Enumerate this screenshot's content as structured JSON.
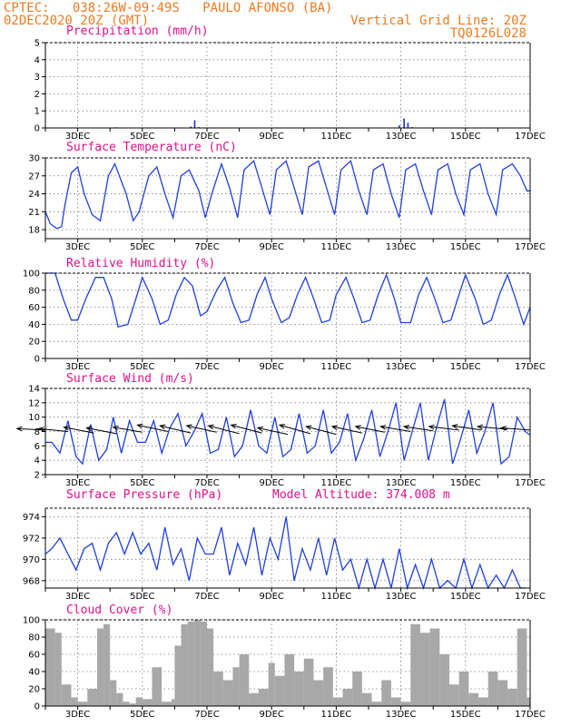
{
  "header": {
    "line1": "CPTEC:   038:26W-09:49S   PAULO AFONSO (BA)",
    "line2": "02DEC2020 20Z (GMT)",
    "vgrid": "Vertical Grid Line: 20Z",
    "code": "TQ0126L028"
  },
  "x_axis": {
    "start_day": 2.0,
    "end_day": 17.0,
    "tick_days": [
      3,
      5,
      7,
      9,
      11,
      13,
      15,
      17
    ],
    "tick_labels": [
      "3DEC",
      "5DEC",
      "7DEC",
      "9DEC",
      "11DEC",
      "13DEC",
      "15DEC",
      "17DEC"
    ]
  },
  "colors": {
    "line": "#1f3fe0",
    "bars_precip": "#1a2bd6",
    "cloud": "#a8a8a8",
    "title": "#e0128a",
    "header": "#f07a1f",
    "arrow": "#000000"
  },
  "chart_data": [
    {
      "type": "bar",
      "title": "Precipitation (mm/h)",
      "ylim": [
        0,
        5
      ],
      "yticks": [
        0,
        1,
        2,
        3,
        4,
        5
      ],
      "x": [
        2.6,
        4.2,
        6.5,
        6.62,
        6.75,
        9.1,
        11.2,
        12.95,
        13.1,
        13.22,
        13.35,
        15.3,
        16.6
      ],
      "values": [
        0.03,
        0.04,
        0.08,
        0.45,
        0.05,
        0.03,
        0.03,
        0.15,
        0.55,
        0.3,
        0.05,
        0.02,
        0.03
      ]
    },
    {
      "type": "line",
      "title": "Surface Temperature (nC)",
      "ylim": [
        16.5,
        30
      ],
      "yticks": [
        18,
        21,
        24,
        27,
        30
      ],
      "x": [
        2.0,
        2.15,
        2.35,
        2.5,
        2.6,
        2.8,
        3.0,
        3.2,
        3.45,
        3.7,
        3.95,
        4.15,
        4.5,
        4.72,
        4.9,
        5.2,
        5.45,
        5.7,
        5.95,
        6.2,
        6.45,
        6.75,
        6.95,
        7.15,
        7.45,
        7.7,
        7.95,
        8.15,
        8.45,
        8.7,
        8.95,
        9.15,
        9.45,
        9.7,
        9.95,
        10.15,
        10.45,
        10.7,
        10.95,
        11.15,
        11.45,
        11.7,
        11.95,
        12.15,
        12.45,
        12.7,
        12.95,
        13.15,
        13.45,
        13.7,
        13.95,
        14.15,
        14.45,
        14.7,
        14.95,
        15.15,
        15.45,
        15.7,
        15.95,
        16.15,
        16.45,
        16.7,
        16.9,
        17.0
      ],
      "values": [
        21.0,
        19.0,
        18.2,
        18.5,
        22,
        27.5,
        28.5,
        24,
        20.5,
        19.5,
        27,
        29,
        24,
        19.5,
        21,
        27,
        28.5,
        24,
        20,
        27,
        28,
        24.5,
        20,
        24,
        29,
        25,
        20,
        28,
        29.5,
        25,
        20.5,
        28,
        29.5,
        25,
        20.5,
        28.5,
        29.5,
        25,
        20.5,
        28,
        29.5,
        24.5,
        20.5,
        28,
        29,
        24,
        20,
        28,
        29,
        24.5,
        20.5,
        28,
        29,
        24,
        20.5,
        28,
        29,
        24,
        20.5,
        28,
        29,
        27,
        24.5,
        24.5
      ]
    },
    {
      "type": "line",
      "title": "Relative Humidity (%)",
      "ylim": [
        0,
        100
      ],
      "yticks": [
        0,
        20,
        40,
        60,
        80,
        100
      ],
      "x": [
        2.0,
        2.3,
        2.55,
        2.8,
        3.0,
        3.25,
        3.55,
        3.8,
        4.05,
        4.25,
        4.55,
        4.8,
        5.0,
        5.3,
        5.55,
        5.8,
        6.05,
        6.3,
        6.55,
        6.8,
        7.0,
        7.3,
        7.55,
        7.8,
        8.05,
        8.3,
        8.55,
        8.8,
        9.0,
        9.3,
        9.55,
        9.8,
        10.05,
        10.3,
        10.55,
        10.8,
        11.0,
        11.3,
        11.55,
        11.8,
        12.05,
        12.3,
        12.55,
        12.8,
        13.0,
        13.3,
        13.55,
        13.8,
        14.05,
        14.3,
        14.55,
        14.8,
        15.0,
        15.3,
        15.55,
        15.8,
        16.05,
        16.3,
        16.55,
        16.8,
        17.0
      ],
      "values": [
        100,
        100,
        70,
        45,
        45,
        70,
        95,
        95,
        70,
        37,
        40,
        70,
        95,
        70,
        40,
        45,
        75,
        95,
        85,
        50,
        55,
        80,
        95,
        65,
        42,
        45,
        75,
        95,
        70,
        42,
        48,
        75,
        95,
        70,
        42,
        45,
        75,
        95,
        70,
        42,
        45,
        75,
        98,
        70,
        42,
        42,
        75,
        95,
        70,
        42,
        45,
        75,
        98,
        70,
        40,
        45,
        75,
        98,
        70,
        40,
        60
      ]
    },
    {
      "type": "line",
      "title": "Surface Wind (m/s)",
      "ylim": [
        2,
        14
      ],
      "yticks": [
        2,
        4,
        6,
        8,
        10,
        12,
        14
      ],
      "x": [
        2.0,
        2.2,
        2.45,
        2.7,
        2.95,
        3.15,
        3.4,
        3.65,
        3.9,
        4.1,
        4.35,
        4.6,
        4.85,
        5.1,
        5.35,
        5.6,
        5.85,
        6.1,
        6.35,
        6.6,
        6.85,
        7.1,
        7.35,
        7.6,
        7.85,
        8.1,
        8.35,
        8.6,
        8.85,
        9.1,
        9.35,
        9.6,
        9.85,
        10.1,
        10.35,
        10.6,
        10.85,
        11.1,
        11.35,
        11.6,
        11.85,
        12.1,
        12.35,
        12.6,
        12.85,
        13.1,
        13.35,
        13.6,
        13.85,
        14.1,
        14.35,
        14.6,
        14.85,
        15.1,
        15.35,
        15.6,
        15.85,
        16.1,
        16.35,
        16.6,
        16.85,
        17.0
      ],
      "values": [
        6.5,
        6.5,
        5.0,
        9.5,
        4.5,
        3.5,
        9.0,
        4.0,
        5.5,
        10.0,
        5.0,
        9.5,
        6.5,
        6.5,
        9.5,
        5.0,
        8.5,
        10.5,
        6.0,
        8.0,
        10.5,
        5.0,
        5.5,
        10.0,
        4.5,
        6.0,
        11.0,
        6.0,
        5.0,
        10.0,
        4.5,
        5.5,
        10.5,
        5.0,
        6.0,
        11.0,
        5.0,
        6.5,
        10.5,
        4.0,
        7.0,
        11.0,
        4.5,
        8.0,
        12.0,
        4.0,
        8.0,
        12.0,
        4.0,
        8.5,
        12.5,
        3.5,
        7.0,
        11.0,
        5.0,
        8.0,
        12.0,
        3.5,
        4.5,
        10.0,
        8.0,
        7.5
      ],
      "arrows_day": [
        2.0,
        2.7,
        3.5,
        4.2,
        5.0,
        5.8,
        6.5,
        7.3,
        8.0,
        8.7,
        9.5,
        10.2,
        11.0,
        11.8,
        12.5,
        13.3,
        14.0,
        14.8,
        15.5,
        16.3,
        17.0
      ],
      "arrows_value": [
        8.2,
        8.0,
        7.8,
        7.7,
        7.9,
        8.0,
        7.8,
        7.9,
        7.7,
        7.8,
        7.6,
        7.7,
        7.6,
        7.8,
        7.9,
        8.0,
        8.1,
        8.2,
        8.2,
        8.3,
        8.2
      ],
      "arrows_dx": [
        -0.35,
        -0.36,
        -0.37,
        -0.37,
        -0.36,
        -0.38,
        -0.38,
        -0.37,
        -0.38,
        -0.38,
        -0.37,
        -0.38,
        -0.37,
        -0.37,
        -0.36,
        -0.37,
        -0.36,
        -0.37,
        -0.36,
        -0.37,
        -0.36
      ],
      "arrows_dy": [
        0.2,
        0.4,
        0.8,
        0.8,
        0.7,
        0.9,
        1.0,
        0.9,
        1.1,
        1.1,
        0.9,
        1.2,
        1.1,
        0.9,
        0.8,
        0.7,
        0.6,
        0.5,
        0.6,
        0.4,
        0.3
      ]
    },
    {
      "type": "line",
      "title": "Surface Pressure (hPa)",
      "annotation": "Model Altitude: 374.008 m",
      "ylim": [
        967.3,
        974.8
      ],
      "yticks": [
        968,
        970,
        972,
        974
      ],
      "x": [
        2.0,
        2.2,
        2.45,
        2.7,
        2.95,
        3.2,
        3.45,
        3.7,
        3.95,
        4.2,
        4.45,
        4.7,
        4.95,
        5.2,
        5.45,
        5.7,
        5.95,
        6.2,
        6.45,
        6.7,
        6.95,
        7.2,
        7.45,
        7.7,
        7.95,
        8.2,
        8.45,
        8.7,
        8.95,
        9.2,
        9.45,
        9.7,
        9.95,
        10.2,
        10.45,
        10.7,
        10.95,
        11.2,
        11.45,
        11.7,
        11.95,
        12.2,
        12.45,
        12.7,
        12.95,
        13.2,
        13.45,
        13.7,
        13.95,
        14.2,
        14.45,
        14.7,
        14.95,
        15.2,
        15.45,
        15.7,
        15.95,
        16.2,
        16.45,
        16.7,
        16.85
      ],
      "values": [
        970.5,
        971.0,
        972.0,
        970.5,
        969.0,
        971.0,
        971.5,
        969.0,
        971.5,
        972.5,
        970.5,
        972.5,
        970.5,
        971.5,
        969.0,
        973.0,
        969.5,
        971.0,
        968.0,
        972.0,
        970.5,
        970.5,
        973.0,
        968.5,
        971.5,
        969.5,
        973.0,
        968.5,
        972.0,
        970.0,
        974.0,
        968.0,
        971.0,
        969.0,
        972.0,
        968.5,
        972.0,
        969.0,
        970.0,
        967.3,
        970.0,
        967.3,
        970.0,
        967.3,
        971.0,
        967.3,
        969.5,
        967.3,
        970.0,
        967.3,
        968.0,
        967.3,
        970.0,
        967.3,
        969.5,
        967.3,
        968.5,
        967.3,
        969.0,
        967.3,
        967.3
      ]
    },
    {
      "type": "bar",
      "title": "Cloud Cover (%)",
      "ylim": [
        0,
        100
      ],
      "yticks": [
        0,
        20,
        40,
        60,
        80,
        100
      ],
      "x": [
        2.0,
        2.3,
        2.5,
        2.8,
        3.0,
        3.3,
        3.6,
        3.8,
        4.0,
        4.2,
        4.4,
        4.6,
        4.8,
        5.0,
        5.3,
        5.6,
        5.9,
        6.0,
        6.2,
        6.4,
        6.6,
        6.8,
        7.0,
        7.2,
        7.5,
        7.8,
        8.0,
        8.3,
        8.6,
        8.9,
        9.1,
        9.4,
        9.7,
        10.0,
        10.3,
        10.6,
        10.9,
        11.2,
        11.5,
        11.8,
        12.1,
        12.4,
        12.7,
        13.0,
        13.3,
        13.6,
        13.9,
        14.2,
        14.5,
        14.8,
        15.1,
        15.4,
        15.7,
        16.0,
        16.3,
        16.6,
        16.9
      ],
      "values": [
        90,
        85,
        25,
        10,
        5,
        20,
        90,
        95,
        30,
        15,
        5,
        3,
        10,
        8,
        45,
        5,
        8,
        70,
        95,
        98,
        100,
        98,
        90,
        40,
        30,
        45,
        60,
        15,
        20,
        50,
        35,
        60,
        40,
        55,
        30,
        45,
        10,
        20,
        40,
        15,
        5,
        30,
        10,
        5,
        95,
        85,
        90,
        60,
        25,
        40,
        15,
        10,
        40,
        30,
        20,
        90,
        10
      ]
    }
  ]
}
